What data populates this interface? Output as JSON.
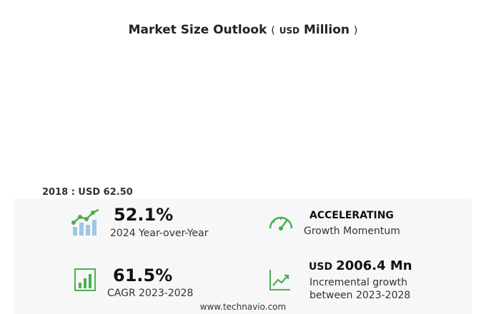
{
  "title": {
    "main": "Market Size Outlook",
    "open_paren": "(",
    "unit": "USD",
    "unit_word": "Million",
    "close_paren": ")"
  },
  "chart_data": {
    "type": "bar",
    "title": "Market Size Outlook ( USD Million )",
    "categories": [],
    "values": [],
    "base_label": "2018 : USD  62.50"
  },
  "stats": {
    "yoy": {
      "value": "52.1%",
      "label": "2024 Year-over-Year"
    },
    "momentum": {
      "value": "ACCELERATING",
      "label": "Growth Momentum"
    },
    "cagr": {
      "value": "61.5%",
      "label": "CAGR 2023-2028"
    },
    "incremental": {
      "unit": "USD",
      "value": "2006.4 Mn",
      "label_line1": "Incremental growth",
      "label_line2": "between 2023-2028"
    }
  },
  "footer": {
    "url": "www.technavio.com"
  },
  "colors": {
    "accent": "#4caf50",
    "bars": "#9fc5e8"
  }
}
